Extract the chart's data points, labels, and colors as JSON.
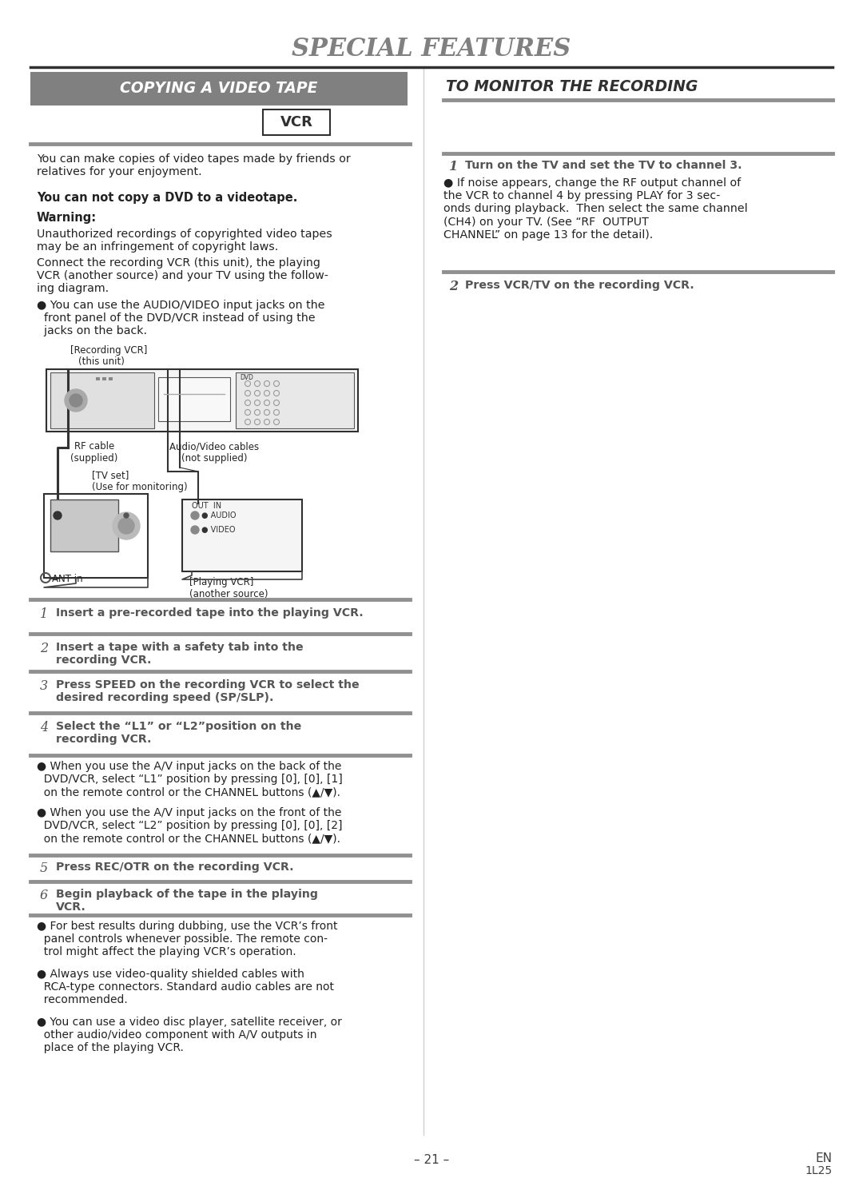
{
  "title": "SPECIAL FEATURES",
  "left_header": "COPYING A VIDEO TAPE",
  "right_header": "TO MONITOR THE RECORDING",
  "vcr_label": "VCR",
  "bg_color": "#ffffff",
  "header_bg": "#808080",
  "header_text_color": "#ffffff",
  "title_color": "#808080",
  "body_text_color": "#222222",
  "divider_color": "#909090",
  "left_col_text_0": "You can make copies of video tapes made by friends or\nrelatives for your enjoyment.",
  "left_col_text_1": "You can not copy a DVD to a videotape.",
  "left_col_text_2": "Warning:",
  "left_col_text_3": "Unauthorized recordings of copyrighted video tapes\nmay be an infringement of copyright laws.",
  "left_col_text_4": "Connect the recording VCR (this unit), the playing\nVCR (another source) and your TV using the follow-\ning diagram.",
  "left_col_text_5": "● You can use the AUDIO/VIDEO input jacks on the\n  front panel of the DVD/VCR instead of using the\n  jacks on the back.",
  "diag_lbl_recording_vcr": "[Recording VCR]",
  "diag_lbl_this_unit": "(this unit)",
  "diag_lbl_rf": "RF cable\n(supplied)",
  "diag_lbl_av": "Audio/Video cables\n(not supplied)",
  "diag_lbl_tv": "[TV set]\n(Use for monitoring)",
  "diag_lbl_ant": "ANT in",
  "diag_lbl_out_in": "OUT  IN",
  "diag_lbl_audio": "● AUDIO",
  "diag_lbl_video": "● VIDEO",
  "diag_lbl_playing": "[Playing VCR]\n(another source)",
  "steps_left": [
    {
      "num": "1",
      "text": "Insert a pre-recorded tape into the playing VCR."
    },
    {
      "num": "2",
      "text": "Insert a tape with a safety tab into the\nrecording VCR."
    },
    {
      "num": "3",
      "text": "Press SPEED on the recording VCR to select the\ndesired recording speed (SP/SLP)."
    },
    {
      "num": "4",
      "text": "Select the “L1” or “L2”position on the\nrecording VCR."
    }
  ],
  "bullet_notes": [
    "● When you use the A/V input jacks on the back of the\n  DVD/VCR, select “L1” position by pressing [0], [0], [1]\n  on the remote control or the CHANNEL buttons (▲/▼).",
    "● When you use the A/V input jacks on the front of the\n  DVD/VCR, select “L2” position by pressing [0], [0], [2]\n  on the remote control or the CHANNEL buttons (▲/▼)."
  ],
  "step5_num": "5",
  "step5_text": "Press REC/OTR on the recording VCR.",
  "step6_num": "6",
  "step6_text": "Begin playback of the tape in the playing\nVCR.",
  "bullet_notes2": [
    "● For best results during dubbing, use the VCR’s front\n  panel controls whenever possible. The remote con-\n  trol might affect the playing VCR’s operation.",
    "● Always use video-quality shielded cables with\n  RCA-type connectors. Standard audio cables are not\n  recommended.",
    "● You can use a video disc player, satellite receiver, or\n  other audio/video component with A/V outputs in\n  place of the playing VCR."
  ],
  "right_step1_num": "1",
  "right_step1_text": "Turn on the TV and set the TV to channel 3.",
  "right_bullet": "● If noise appears, change the RF output channel of\nthe VCR to channel 4 by pressing PLAY for 3 sec-\nonds during playback.  Then select the same channel\n(CH4) on your TV. (See “RF  OUTPUT\nCHANNEL” on page 13 for the detail).",
  "right_step2_num": "2",
  "right_step2_text": "Press VCR/TV on the recording VCR.",
  "footer_left": "– 21 –",
  "footer_en": "EN",
  "footer_code": "1L25"
}
